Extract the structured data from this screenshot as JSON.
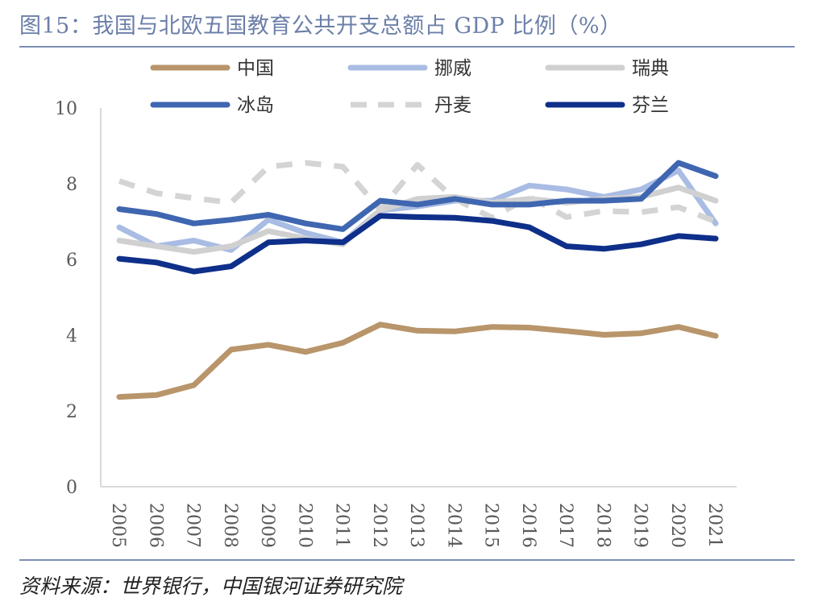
{
  "title": "图15：我国与北欧五国教育公共开支总额占 GDP 比例（%）",
  "source": "资料来源：世界银行，中国银河证券研究院",
  "chart_data": {
    "type": "line",
    "title": "图15：我国与北欧五国教育公共开支总额占 GDP 比例（%）",
    "xlabel": "",
    "ylabel": "",
    "ylim": [
      0,
      10
    ],
    "yticks": [
      "0",
      "2",
      "4",
      "6",
      "8",
      "10"
    ],
    "categories": [
      "2005",
      "2006",
      "2007",
      "2008",
      "2009",
      "2010",
      "2011",
      "2012",
      "2013",
      "2014",
      "2015",
      "2016",
      "2017",
      "2018",
      "2019",
      "2020",
      "2021"
    ],
    "series": [
      {
        "name": "中国",
        "color": "#b8956a",
        "dash": false,
        "values": [
          2.37,
          2.42,
          2.68,
          3.62,
          3.75,
          3.56,
          3.8,
          4.28,
          4.12,
          4.1,
          4.22,
          4.2,
          4.11,
          4.01,
          4.05,
          4.22,
          3.98
        ]
      },
      {
        "name": "挪威",
        "color": "#a9bce3",
        "dash": false,
        "values": [
          6.85,
          6.35,
          6.5,
          6.25,
          7.05,
          6.7,
          6.45,
          7.3,
          7.4,
          7.55,
          7.55,
          7.95,
          7.85,
          7.65,
          7.85,
          8.35,
          6.95
        ]
      },
      {
        "name": "瑞典",
        "color": "#d0d0d0",
        "dash": false,
        "values": [
          6.5,
          6.35,
          6.2,
          6.35,
          6.75,
          6.55,
          6.4,
          7.3,
          7.6,
          7.65,
          7.5,
          7.6,
          7.5,
          7.6,
          7.65,
          7.9,
          7.55
        ]
      },
      {
        "name": "冰岛",
        "color": "#3f66b0",
        "dash": false,
        "values": [
          7.33,
          7.2,
          6.95,
          7.05,
          7.18,
          6.95,
          6.8,
          7.55,
          7.45,
          7.6,
          7.45,
          7.45,
          7.55,
          7.55,
          7.6,
          8.55,
          8.2
        ]
      },
      {
        "name": "丹麦",
        "color": "#d4d4d4",
        "dash": true,
        "values": [
          8.07,
          7.75,
          7.62,
          7.5,
          8.45,
          8.55,
          8.45,
          7.32,
          8.5,
          7.6,
          7.1,
          7.65,
          7.12,
          7.28,
          7.25,
          7.38,
          7.0
        ]
      },
      {
        "name": "芬兰",
        "color": "#0e2f8a",
        "dash": false,
        "values": [
          6.02,
          5.92,
          5.68,
          5.82,
          6.45,
          6.5,
          6.45,
          7.15,
          7.12,
          7.1,
          7.02,
          6.85,
          6.35,
          6.28,
          6.4,
          6.62,
          6.55
        ]
      }
    ]
  }
}
